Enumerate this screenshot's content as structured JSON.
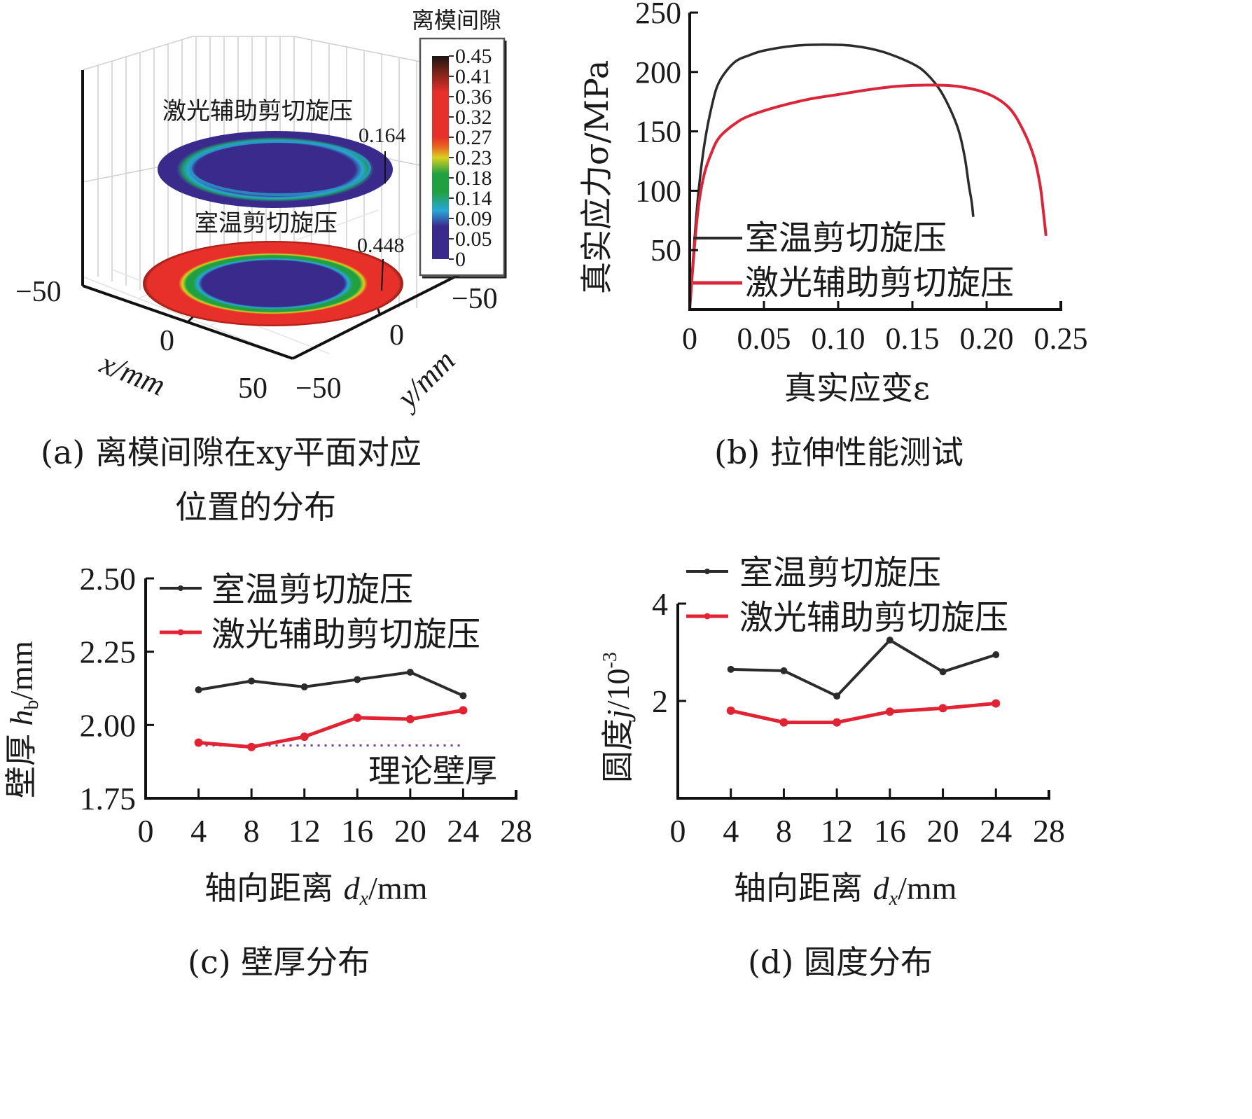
{
  "figure": {
    "panel_a": {
      "caption_line1": "(a) 离模间隙在xy平面对应",
      "caption_line2": "位置的分布",
      "colorbar_title": "离模间隙",
      "colorbar_ticks": [
        "0.45",
        "0.41",
        "0.36",
        "0.32",
        "0.27",
        "0.23",
        "0.18",
        "0.14",
        "0.09",
        "0.05",
        "0"
      ],
      "colorbar_colors": [
        "#2a1a14",
        "#7a2418",
        "#e8302a",
        "#e8302a",
        "#e8302a",
        "#d8d020",
        "#20a040",
        "#20a040",
        "#28a8d8",
        "#3a2a8c",
        "#3a2a8c"
      ],
      "disk_top_label": "激光辅助剪切旋压",
      "disk_top_value": "0.164",
      "disk_bottom_label": "室温剪切旋压",
      "disk_bottom_value": "0.448",
      "x_ticks": [
        "−50",
        "0",
        "50"
      ],
      "y_ticks": [
        "−50",
        "0",
        "−50"
      ],
      "xlabel": "x/mm",
      "ylabel": "y/mm"
    },
    "captions": {
      "b": "(b) 拉伸性能测试",
      "c": "(c) 壁厚分布",
      "d": "(d) 圆度分布"
    }
  },
  "chart_data": [
    {
      "id": "b",
      "type": "line",
      "title": "拉伸性能测试",
      "xlabel": "真实应变ε",
      "ylabel": "真实应力σ/MPa",
      "xlim": [
        0,
        0.25
      ],
      "ylim": [
        0,
        250
      ],
      "x_ticks": [
        "0",
        "0.05",
        "0.10",
        "0.15",
        "0.20",
        "0.25"
      ],
      "y_ticks": [
        "50",
        "100",
        "150",
        "200",
        "250"
      ],
      "legend": "bottom-left",
      "series": [
        {
          "name": "室温剪切旋压",
          "color": "#2b2b2b",
          "x": [
            0.0,
            0.003,
            0.006,
            0.01,
            0.015,
            0.02,
            0.03,
            0.04,
            0.05,
            0.07,
            0.09,
            0.11,
            0.13,
            0.15,
            0.16,
            0.17,
            0.18,
            0.185,
            0.188,
            0.19,
            0.191
          ],
          "y": [
            0,
            55,
            100,
            140,
            172,
            192,
            208,
            214,
            218,
            222,
            223,
            222,
            217,
            207,
            198,
            182,
            155,
            130,
            105,
            90,
            78
          ]
        },
        {
          "name": "激光辅助剪切旋压",
          "color": "#d9263a",
          "x": [
            0.0,
            0.003,
            0.006,
            0.01,
            0.015,
            0.02,
            0.03,
            0.04,
            0.06,
            0.08,
            0.1,
            0.12,
            0.14,
            0.16,
            0.18,
            0.2,
            0.215,
            0.225,
            0.232,
            0.236,
            0.238,
            0.24
          ],
          "y": [
            0,
            50,
            88,
            115,
            133,
            145,
            156,
            163,
            171,
            177,
            181,
            185,
            188,
            189,
            188,
            182,
            170,
            150,
            128,
            105,
            85,
            62
          ]
        }
      ]
    },
    {
      "id": "c",
      "type": "line",
      "title": "壁厚分布",
      "xlabel": "轴向距离 dx/mm",
      "ylabel": "壁厚 hb/mm",
      "xlim": [
        0,
        28
      ],
      "ylim": [
        1.75,
        2.5
      ],
      "x_ticks": [
        "0",
        "4",
        "8",
        "12",
        "16",
        "20",
        "24",
        "28"
      ],
      "y_ticks": [
        "1.75",
        "2.00",
        "2.25",
        "2.50"
      ],
      "legend": "top-left",
      "annotation": "理论壁厚",
      "reference_line": {
        "name": "理论壁厚",
        "y": 1.93,
        "x": [
          4,
          24
        ],
        "color": "#6a3aa0"
      },
      "x": [
        4,
        8,
        12,
        16,
        20,
        24
      ],
      "series": [
        {
          "name": "室温剪切旋压",
          "color": "#2b2b2b",
          "values": [
            2.12,
            2.15,
            2.13,
            2.155,
            2.18,
            2.1
          ]
        },
        {
          "name": "激光辅助剪切旋压",
          "color": "#e02433",
          "values": [
            1.94,
            1.925,
            1.96,
            2.025,
            2.02,
            2.05
          ]
        }
      ]
    },
    {
      "id": "d",
      "type": "line",
      "title": "圆度分布",
      "xlabel": "轴向距离 dx/mm",
      "ylabel": "圆度 j/10^-3",
      "xlim": [
        0,
        28
      ],
      "ylim": [
        0,
        4
      ],
      "x_ticks": [
        "0",
        "4",
        "8",
        "12",
        "16",
        "20",
        "24",
        "28"
      ],
      "y_ticks": [
        "2",
        "4"
      ],
      "legend": "top-left",
      "x": [
        4,
        8,
        12,
        16,
        20,
        24
      ],
      "series": [
        {
          "name": "室温剪切旋压",
          "color": "#2b2b2b",
          "values": [
            2.65,
            2.62,
            2.1,
            3.25,
            2.6,
            2.95
          ]
        },
        {
          "name": "激光辅助剪切旋压",
          "color": "#e02433",
          "values": [
            1.8,
            1.56,
            1.56,
            1.78,
            1.85,
            1.95
          ]
        }
      ]
    }
  ]
}
